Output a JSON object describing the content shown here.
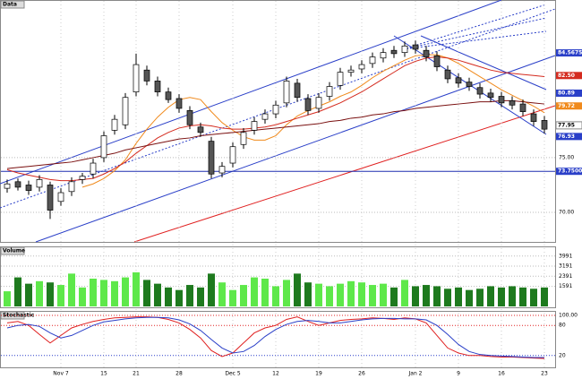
{
  "chart_data": [
    {
      "type": "candlestick",
      "title": "Data",
      "categories": [
        null,
        null,
        null,
        null,
        null,
        "Nov 7",
        null,
        null,
        null,
        "15",
        null,
        null,
        "21",
        null,
        null,
        null,
        "28",
        null,
        null,
        null,
        null,
        "Dec 5",
        null,
        null,
        null,
        "12",
        null,
        null,
        null,
        "19",
        null,
        null,
        null,
        "26",
        null,
        null,
        null,
        null,
        "Jan 2",
        null,
        null,
        null,
        "9",
        null,
        null,
        null,
        "16",
        null,
        null,
        null,
        "23"
      ],
      "open": [
        72.2,
        72.8,
        72.5,
        72.3,
        72.5,
        71.0,
        71.9,
        73.0,
        73.5,
        75.0,
        77.5,
        78.0,
        81.0,
        83.0,
        82.0,
        81.0,
        80.4,
        79.3,
        77.8,
        76.5,
        73.6,
        74.5,
        76.2,
        77.5,
        78.5,
        79.0,
        80.0,
        81.8,
        80.4,
        79.5,
        80.6,
        81.6,
        82.8,
        83.1,
        83.6,
        84.1,
        84.8,
        84.6,
        85.3,
        84.8,
        84.3,
        83.0,
        82.3,
        81.9,
        81.4,
        80.9,
        80.6,
        80.2,
        79.9,
        79.0,
        78.4
      ],
      "high": [
        73.0,
        73.1,
        72.9,
        73.4,
        72.8,
        72.2,
        73.2,
        73.6,
        74.9,
        77.4,
        78.9,
        80.9,
        84.5,
        83.4,
        82.4,
        81.4,
        80.8,
        79.7,
        78.2,
        76.9,
        74.6,
        76.4,
        77.7,
        78.7,
        79.4,
        80.2,
        82.4,
        82.2,
        80.8,
        80.9,
        81.9,
        83.2,
        83.4,
        83.9,
        84.6,
        85.0,
        85.2,
        85.6,
        85.7,
        85.2,
        84.7,
        83.4,
        82.7,
        82.3,
        81.8,
        81.3,
        81.0,
        80.6,
        80.3,
        79.4,
        78.8
      ],
      "low": [
        71.8,
        72.0,
        71.6,
        71.9,
        69.4,
        70.6,
        71.5,
        72.6,
        73.1,
        74.6,
        77.1,
        77.6,
        80.6,
        81.6,
        80.6,
        80.0,
        79.1,
        77.6,
        76.9,
        73.1,
        73.2,
        74.1,
        75.8,
        77.1,
        78.1,
        78.6,
        79.6,
        80.1,
        78.9,
        79.1,
        80.2,
        81.2,
        82.4,
        82.7,
        83.2,
        83.7,
        84.1,
        84.2,
        84.5,
        83.8,
        82.9,
        81.8,
        81.4,
        81.1,
        80.4,
        80.1,
        79.6,
        79.4,
        78.8,
        77.9,
        77.2
      ],
      "close": [
        72.6,
        72.3,
        72.0,
        73.0,
        70.2,
        71.8,
        72.8,
        73.3,
        74.5,
        77.0,
        78.5,
        80.5,
        83.5,
        82.0,
        81.0,
        80.3,
        79.5,
        78.0,
        77.3,
        73.5,
        74.2,
        76.0,
        77.3,
        78.3,
        79.0,
        79.8,
        82.0,
        80.5,
        79.3,
        80.5,
        81.5,
        82.8,
        83.0,
        83.5,
        84.2,
        84.6,
        84.5,
        85.2,
        84.9,
        84.2,
        83.3,
        82.2,
        81.8,
        81.5,
        80.8,
        80.5,
        80.0,
        79.8,
        79.2,
        78.3,
        77.6
      ],
      "up_color": "#ffffff",
      "down_color": "#555555",
      "series": [
        {
          "color": "#f08a1c",
          "values": [
            null,
            null,
            null,
            null,
            null,
            null,
            null,
            72.3,
            72.6,
            73.1,
            73.8,
            74.8,
            76.3,
            77.6,
            78.7,
            79.6,
            80.3,
            80.5,
            80.3,
            79.2,
            78.2,
            77.5,
            76.9,
            76.6,
            76.6,
            77.0,
            78.0,
            78.8,
            79.3,
            79.7,
            80.1,
            80.6,
            81.0,
            81.6,
            82.3,
            82.9,
            83.4,
            83.9,
            84.3,
            84.4,
            84.4,
            84.1,
            83.6,
            83.0,
            82.4,
            81.8,
            81.2,
            80.7,
            80.2,
            79.7,
            79.1
          ]
        },
        {
          "color": "#d42a1e",
          "values": [
            73.9,
            73.6,
            73.4,
            73.2,
            73.0,
            72.9,
            72.9,
            73.0,
            73.1,
            73.5,
            74.0,
            74.6,
            75.4,
            76.1,
            76.8,
            77.3,
            77.7,
            77.9,
            78.0,
            77.9,
            77.7,
            77.6,
            77.6,
            77.7,
            77.8,
            78.0,
            78.3,
            78.6,
            78.9,
            79.2,
            79.6,
            80.0,
            80.5,
            81.0,
            81.6,
            82.2,
            82.8,
            83.4,
            83.8,
            84.1,
            84.2,
            84.1,
            83.9,
            83.6,
            83.3,
            83.0,
            82.8,
            82.7,
            82.6,
            82.5,
            82.4
          ]
        },
        {
          "color": "#7a1010",
          "values": [
            74.0,
            74.1,
            74.2,
            74.3,
            74.4,
            74.5,
            74.6,
            74.8,
            75.0,
            75.2,
            75.4,
            75.7,
            75.9,
            76.1,
            76.3,
            76.5,
            76.7,
            76.8,
            77.0,
            77.1,
            77.2,
            77.3,
            77.4,
            77.5,
            77.6,
            77.7,
            77.8,
            77.9,
            78.0,
            78.1,
            78.3,
            78.4,
            78.6,
            78.7,
            78.9,
            79.0,
            79.2,
            79.3,
            79.5,
            79.6,
            79.7,
            79.8,
            79.9,
            80.0,
            80.1,
            80.1,
            80.2,
            80.2,
            80.1,
            80.0,
            79.9
          ]
        }
      ],
      "hline": 73.75,
      "hline_color": "#1f2fb0",
      "ylim": [
        67.3,
        89.4
      ],
      "yticks": [
        {
          "value": 75,
          "label": "75.00"
        },
        {
          "value": 70,
          "label": "70.00"
        }
      ],
      "tags": [
        {
          "value": 84.5675,
          "label": "84.5675",
          "color": "#2a3fc8"
        },
        {
          "value": 82.5,
          "label": "82.50",
          "color": "#d42a1e"
        },
        {
          "value": 80.89,
          "label": "80.89",
          "color": "#2a3fc8"
        },
        {
          "value": 79.72,
          "label": "79.72",
          "color": "#f08a1c"
        },
        {
          "value": 77.95,
          "label": "77.95",
          "color": "#ffffff"
        },
        {
          "value": 76.93,
          "label": "76.93",
          "color": "#2a3fc8"
        },
        {
          "value": 73.75,
          "label": "73.7500",
          "color": "#2a3fc8"
        }
      ]
    },
    {
      "type": "bar",
      "title": "Volume",
      "values": [
        1200,
        2300,
        1800,
        2000,
        1900,
        1700,
        2600,
        1500,
        2200,
        2100,
        2000,
        2300,
        2700,
        2100,
        1800,
        1500,
        1300,
        1700,
        1500,
        2600,
        1900,
        1300,
        1700,
        2300,
        2200,
        1600,
        2100,
        2600,
        1900,
        1800,
        1600,
        1800,
        2000,
        1900,
        1700,
        1800,
        1500,
        2100,
        1600,
        1700,
        1600,
        1400,
        1500,
        1300,
        1400,
        1600,
        1500,
        1600,
        1500,
        1400,
        1500
      ],
      "up_color": "#5ee84a",
      "down_color": "#1e7a1e",
      "ylim": [
        0,
        4400
      ],
      "yticks": [
        3991,
        3191,
        2391,
        1591
      ]
    },
    {
      "type": "line",
      "title": "Stochastic",
      "series": [
        {
          "color": "#e02020",
          "values": [
            85,
            88,
            80,
            62,
            45,
            60,
            75,
            82,
            88,
            92,
            95,
            96,
            97,
            97,
            96,
            92,
            85,
            72,
            55,
            30,
            18,
            25,
            45,
            65,
            75,
            80,
            92,
            97,
            88,
            80,
            85,
            90,
            92,
            93,
            95,
            94,
            92,
            95,
            93,
            85,
            60,
            35,
            25,
            20,
            20,
            18,
            17,
            17,
            16,
            15,
            14
          ]
        },
        {
          "color": "#2a3fc8",
          "values": [
            75,
            80,
            82,
            78,
            65,
            55,
            60,
            70,
            80,
            87,
            90,
            93,
            95,
            96,
            96,
            95,
            91,
            83,
            70,
            52,
            35,
            25,
            28,
            40,
            58,
            72,
            82,
            88,
            90,
            88,
            85,
            85,
            88,
            91,
            93,
            94,
            94,
            93,
            93,
            91,
            80,
            62,
            42,
            28,
            22,
            20,
            19,
            18,
            17,
            16,
            16
          ]
        }
      ],
      "ylim": [
        0,
        100
      ],
      "yticks": [
        {
          "value": 100,
          "label": "100.00"
        },
        80,
        20
      ]
    }
  ]
}
